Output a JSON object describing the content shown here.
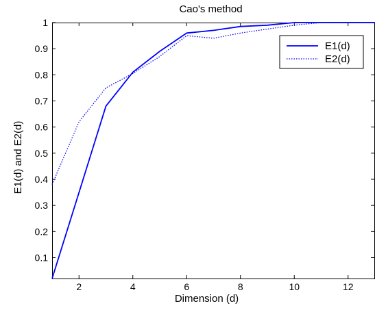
{
  "chart_data": {
    "type": "line",
    "title": "Cao's method",
    "xlabel": "Dimension (d)",
    "ylabel": "E1(d) and E2(d)",
    "xlim": [
      1,
      13
    ],
    "ylim": [
      0.02,
      1.0
    ],
    "xticks": [
      2,
      4,
      6,
      8,
      10,
      12
    ],
    "yticks": [
      0.1,
      0.2,
      0.3,
      0.4,
      0.5,
      0.6,
      0.7,
      0.8,
      0.9,
      1
    ],
    "grid": false,
    "legend_position": "top-right",
    "series": [
      {
        "name": "E1(d)",
        "style": "solid",
        "color": "#0000ff",
        "x": [
          1,
          2,
          3,
          4,
          5,
          6,
          7,
          8,
          9,
          10,
          11,
          12,
          13
        ],
        "y": [
          0.02,
          0.35,
          0.68,
          0.81,
          0.89,
          0.96,
          0.97,
          0.985,
          0.99,
          1.0,
          1.0,
          1.0,
          1.0
        ]
      },
      {
        "name": "E2(d)",
        "style": "dotted",
        "color": "#0000ff",
        "x": [
          1,
          2,
          3,
          4,
          5,
          6,
          7,
          8,
          9,
          10,
          11,
          12,
          13
        ],
        "y": [
          0.38,
          0.62,
          0.75,
          0.805,
          0.87,
          0.95,
          0.94,
          0.96,
          0.975,
          0.99,
          1.0,
          1.0,
          1.0
        ]
      }
    ]
  }
}
